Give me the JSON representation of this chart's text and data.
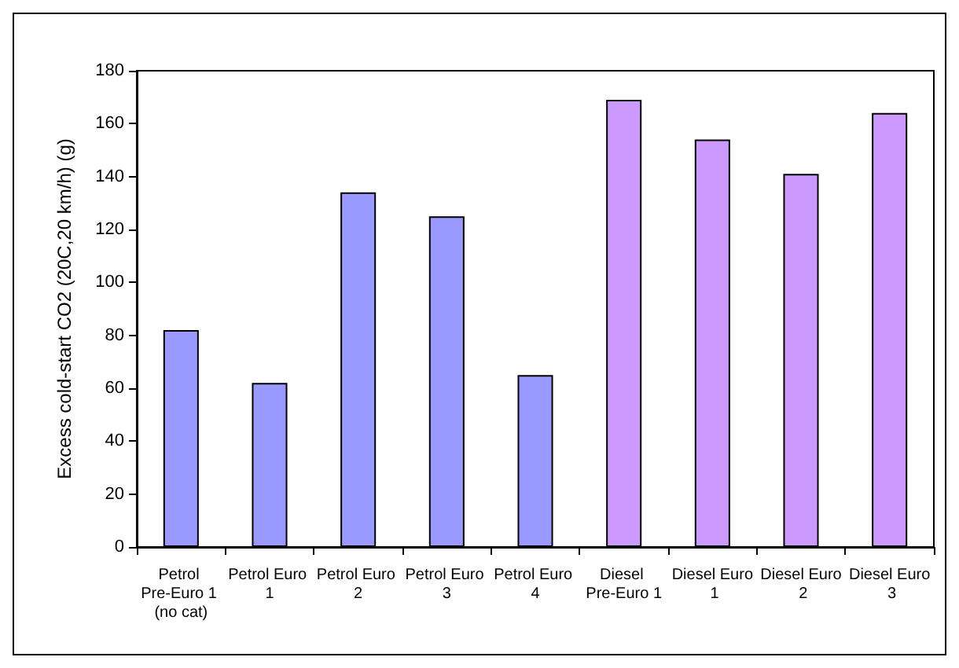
{
  "chart_data": {
    "type": "bar",
    "ylabel": "Excess cold-start CO2 (20C,20 km/h) (g)",
    "categories": [
      "Petrol Pre-Euro 1 (no cat)",
      "Petrol Euro 1",
      "Petrol Euro 2",
      "Petrol Euro 3",
      "Petrol Euro 4",
      "Diesel Pre-Euro 1",
      "Diesel Euro 1",
      "Diesel Euro 2",
      "Diesel Euro 3"
    ],
    "values": [
      82,
      62,
      134,
      125,
      65,
      169,
      154,
      141,
      164
    ],
    "colors": [
      "#9999ff",
      "#9999ff",
      "#9999ff",
      "#9999ff",
      "#9999ff",
      "#cc99ff",
      "#cc99ff",
      "#cc99ff",
      "#cc99ff"
    ],
    "ylim": [
      0,
      180
    ],
    "yticks": [
      0,
      20,
      40,
      60,
      80,
      100,
      120,
      140,
      160,
      180
    ],
    "grid": false
  }
}
